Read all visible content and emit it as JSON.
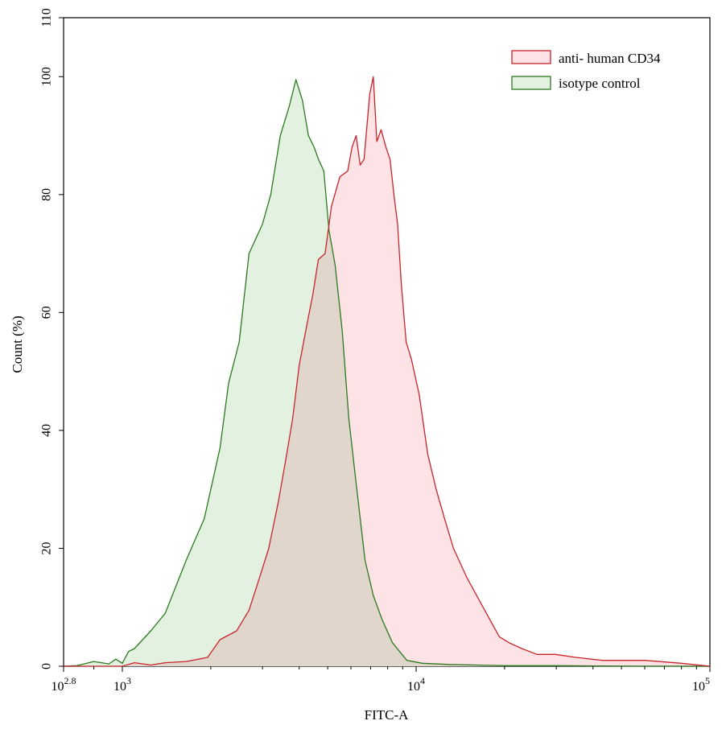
{
  "chart_data": {
    "type": "area",
    "title": "",
    "xlabel": "FITC-A",
    "ylabel": "Count  (%)",
    "x_scale": "log10",
    "xlim": [
      631,
      100000
    ],
    "ylim": [
      0,
      110
    ],
    "x_ticks": [
      {
        "value": 631,
        "base": "10",
        "exp": "2.8"
      },
      {
        "value": 1000,
        "base": "10",
        "exp": "3"
      },
      {
        "value": 10000,
        "base": "10",
        "exp": "4"
      },
      {
        "value": 100000,
        "base": "10",
        "exp": "5"
      }
    ],
    "y_ticks": [
      "0",
      "20",
      "40",
      "60",
      "80",
      "100",
      "110"
    ],
    "grid": false,
    "legend_position": "top-right",
    "series": [
      {
        "name": "anti- human CD34",
        "line_color": "#c8242b",
        "fill_color": "#fde3e6",
        "x": [
          631,
          800,
          1000,
          1100,
          1250,
          1400,
          1650,
          1950,
          2150,
          2450,
          2700,
          2930,
          3150,
          3400,
          3600,
          3800,
          4000,
          4250,
          4450,
          4650,
          4900,
          5150,
          5500,
          5850,
          6050,
          6250,
          6450,
          6650,
          6950,
          7150,
          7350,
          7600,
          7900,
          8150,
          8400,
          8650,
          8900,
          9250,
          9650,
          10250,
          10950,
          11700,
          12500,
          13400,
          14900,
          16900,
          19200,
          20700,
          22900,
          25800,
          29800,
          35000,
          43000,
          60000,
          80000,
          100000
        ],
        "y": [
          0,
          0,
          0,
          0.6,
          0.2,
          0.6,
          0.8,
          1.5,
          4.5,
          6,
          9.5,
          15,
          20,
          28,
          35,
          42,
          51,
          58,
          63,
          69,
          70,
          78,
          83,
          84,
          88,
          90,
          85,
          86,
          97,
          100,
          89,
          91,
          88,
          86,
          80,
          75,
          65,
          55,
          52,
          46,
          36,
          30,
          25,
          20,
          15,
          10,
          5,
          4,
          3,
          2,
          2,
          1.5,
          1,
          1,
          0.5,
          0
        ]
      },
      {
        "name": "isotype control",
        "line_color": "#2b7a1e",
        "fill_color": "#e3f1e1",
        "x": [
          631,
          700,
          800,
          900,
          950,
          1000,
          1050,
          1100,
          1250,
          1400,
          1650,
          1900,
          2000,
          2150,
          2300,
          2500,
          2700,
          3000,
          3200,
          3450,
          3700,
          3900,
          4100,
          4300,
          4500,
          4650,
          4850,
          5050,
          5300,
          5600,
          5900,
          6250,
          6700,
          7150,
          7650,
          8300,
          9300,
          10500,
          13000,
          16000,
          20000,
          30000,
          60000,
          100000
        ],
        "y": [
          0,
          0.1,
          0.8,
          0.4,
          1.2,
          0.5,
          2.5,
          3,
          6,
          9,
          18,
          25,
          30,
          37,
          48,
          55,
          70,
          75,
          80,
          90,
          95,
          99.5,
          96,
          90,
          88,
          86,
          84,
          74,
          68,
          57,
          42,
          31,
          18,
          12,
          8,
          4,
          1,
          0.5,
          0.3,
          0.2,
          0.1,
          0.1,
          0,
          0
        ]
      }
    ]
  }
}
